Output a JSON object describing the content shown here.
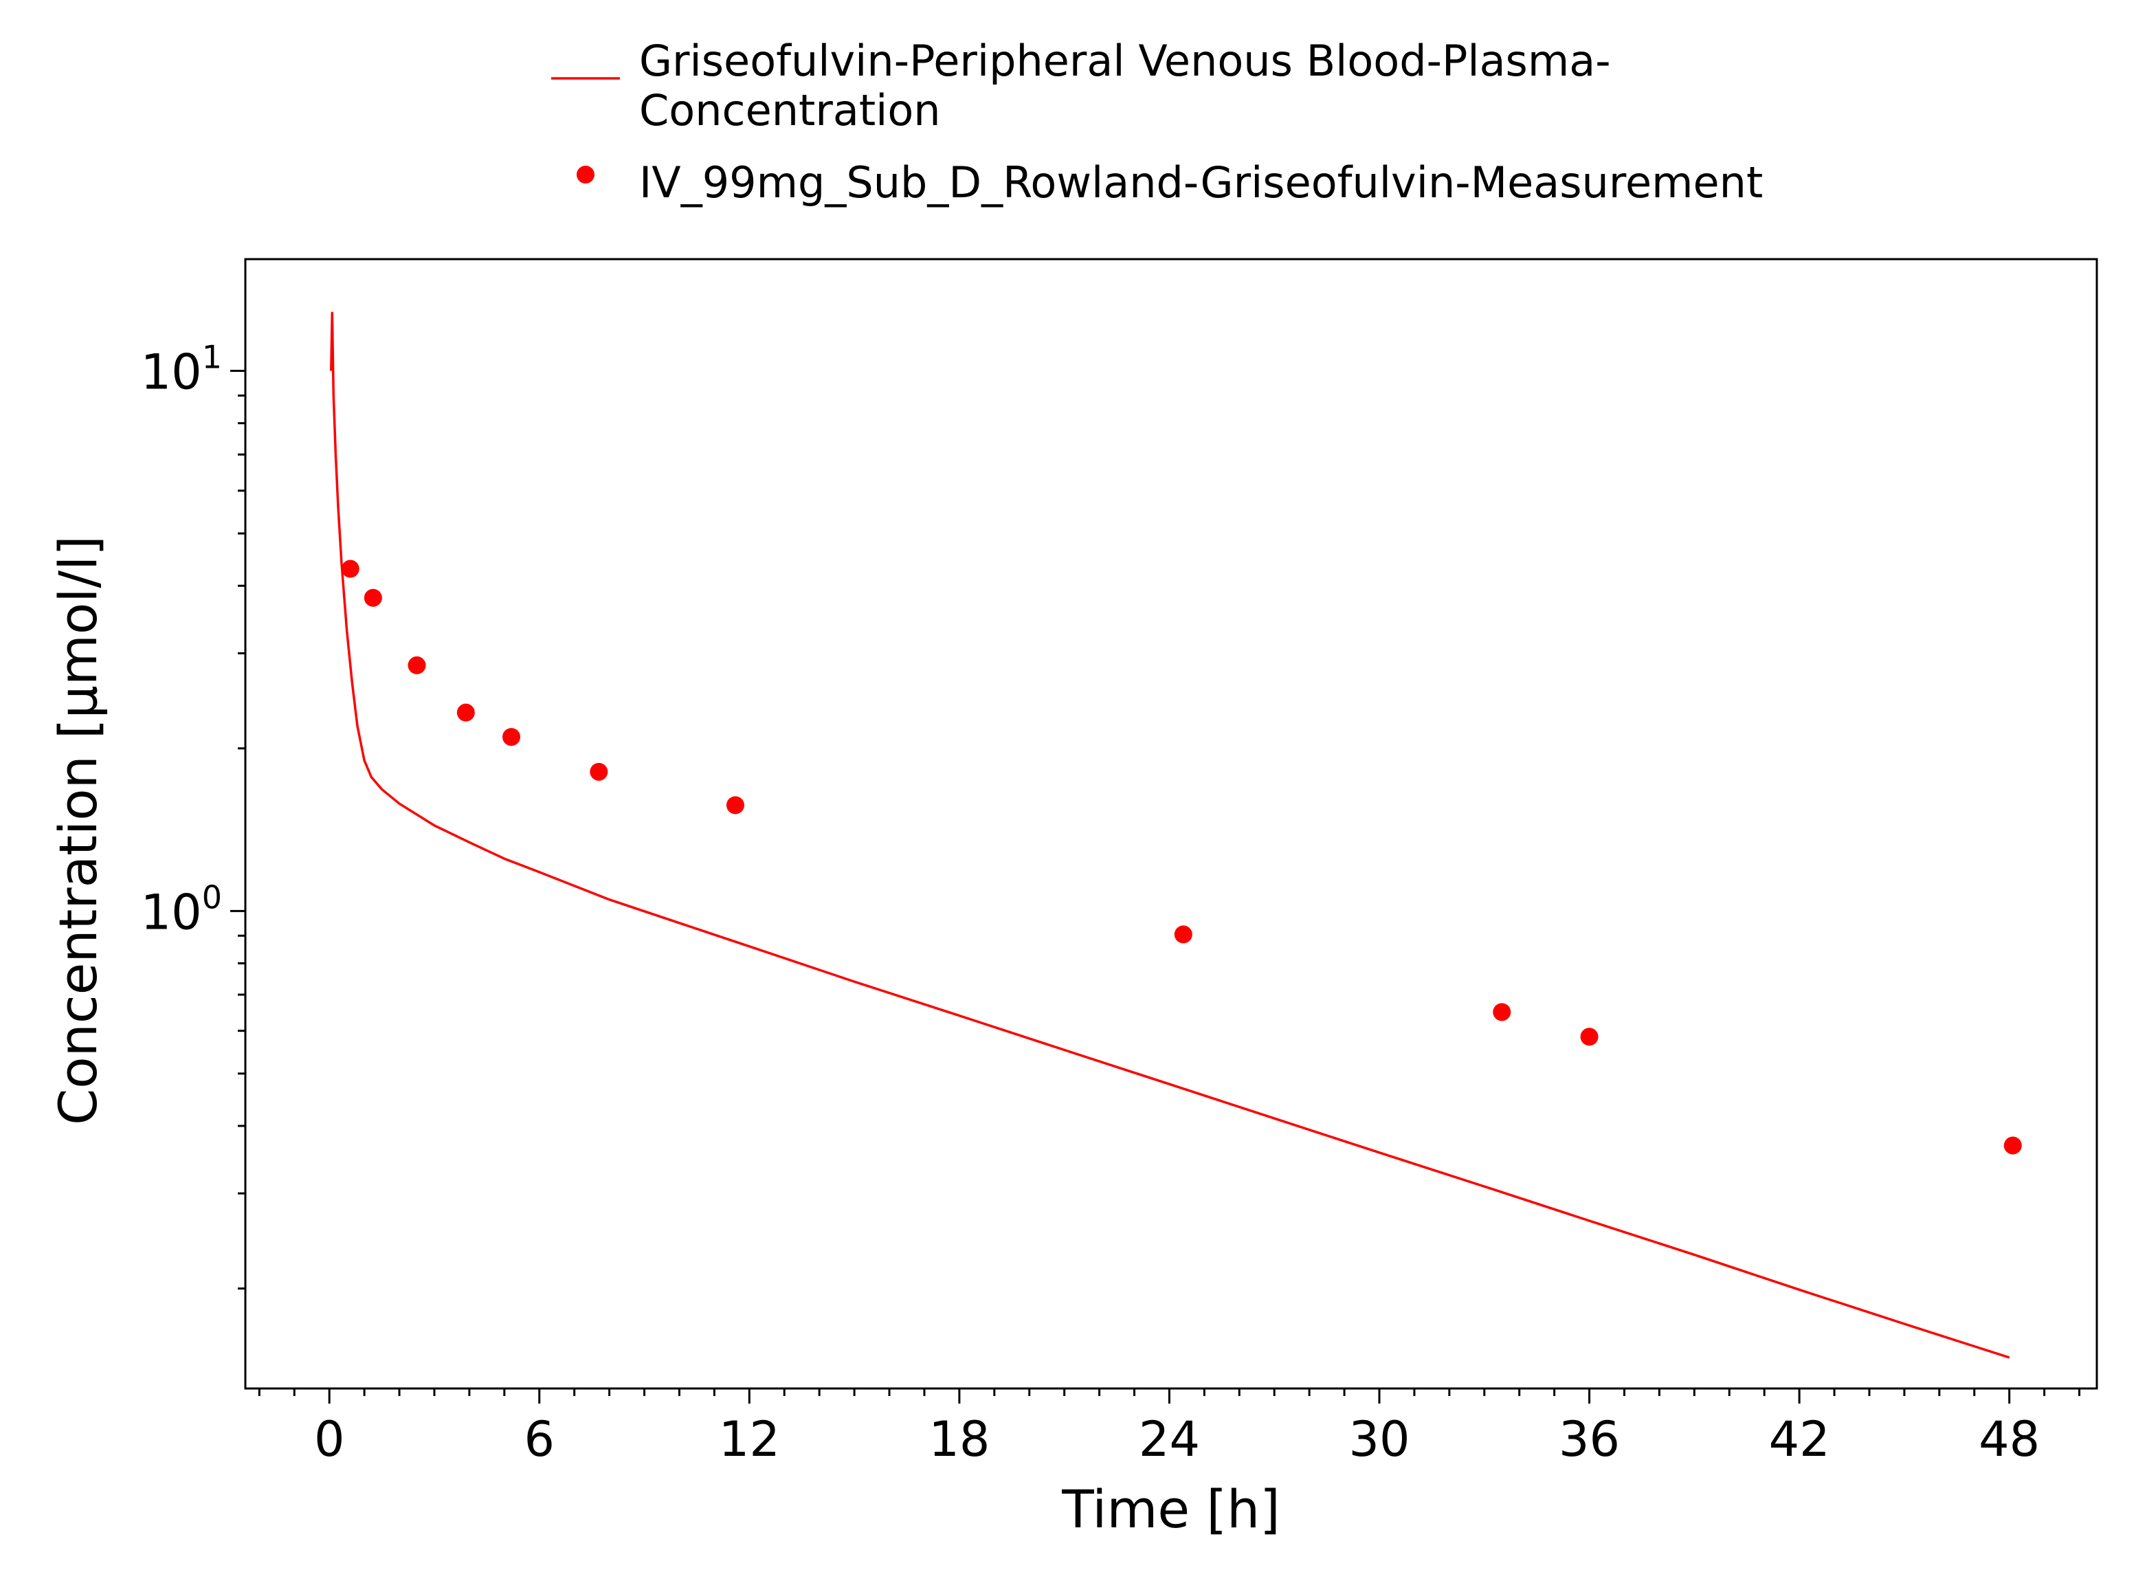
{
  "chart_data": {
    "type": "line",
    "title": "",
    "xlabel": "Time [h]",
    "ylabel": "Concentration [µmol/l]",
    "x_scale": "linear",
    "y_scale": "log",
    "xlim": [
      -2.4,
      50.5
    ],
    "ylim": [
      0.1306,
      16.1
    ],
    "x_ticks": [
      0,
      6,
      12,
      18,
      24,
      30,
      36,
      42,
      48
    ],
    "x_tick_labels": [
      "0",
      "6",
      "12",
      "18",
      "24",
      "30",
      "36",
      "42",
      "48"
    ],
    "y_ticks": [
      1,
      10
    ],
    "y_tick_labels": [
      {
        "base": "10",
        "exp": "0"
      },
      {
        "base": "10",
        "exp": "1"
      }
    ],
    "grid": false,
    "legend_position": "top-center",
    "series": [
      {
        "name": "Griseofulvin-Peripheral Venous Blood-Plasma-Concentration",
        "name_lines": [
          "Griseofulvin-Peripheral Venous Blood-Plasma-",
          "Concentration"
        ],
        "kind": "line",
        "color": "#ff0000",
        "x": [
          0.05,
          0.08,
          0.12,
          0.18,
          0.25,
          0.35,
          0.5,
          0.65,
          0.8,
          1.0,
          1.2,
          1.5,
          2,
          3,
          4,
          5,
          6,
          8,
          10,
          12,
          15,
          18,
          21,
          24,
          27,
          30,
          33,
          36,
          39,
          42,
          45,
          48
        ],
        "y": [
          10.0,
          12.8,
          9.0,
          7.0,
          5.6,
          4.4,
          3.3,
          2.65,
          2.2,
          1.9,
          1.77,
          1.68,
          1.58,
          1.44,
          1.34,
          1.25,
          1.18,
          1.05,
          0.95,
          0.86,
          0.74,
          0.64,
          0.553,
          0.478,
          0.413,
          0.357,
          0.309,
          0.267,
          0.231,
          0.199,
          0.172,
          0.149
        ]
      },
      {
        "name": "IV_99mg_Sub_D_Rowland-Griseofulvin-Measurement",
        "kind": "scatter",
        "color": "#ff0000",
        "x": [
          0.6,
          1.25,
          2.5,
          3.9,
          5.2,
          7.7,
          11.6,
          24.4,
          33.5,
          36.0,
          48.1
        ],
        "y": [
          4.3,
          3.8,
          2.85,
          2.33,
          2.1,
          1.81,
          1.57,
          0.905,
          0.65,
          0.585,
          0.368
        ]
      }
    ]
  }
}
